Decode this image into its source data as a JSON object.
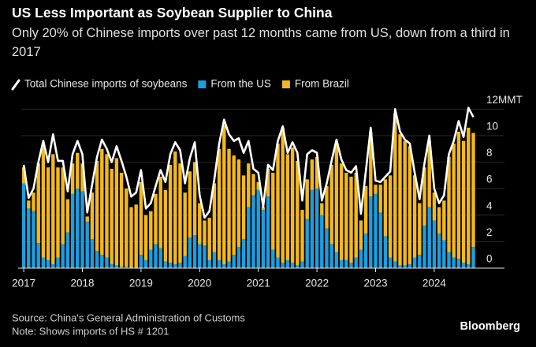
{
  "chart_data": {
    "type": "bar",
    "stacked": true,
    "title": "US Less Important as Soybean Supplier to China",
    "subtitle": "Only 20% of Chinese imports over past 12 months came from US, down from a third in 2017",
    "source": "Source: China's General Administration of Customs",
    "note": "Note: Shows imports of HS # 1201",
    "brand": "Bloomberg",
    "legend": "top-left",
    "grid": true,
    "categories": [
      "2017",
      null,
      null,
      null,
      null,
      null,
      null,
      null,
      null,
      null,
      null,
      null,
      "2018",
      null,
      null,
      null,
      null,
      null,
      null,
      null,
      null,
      null,
      null,
      null,
      "2019",
      null,
      null,
      null,
      null,
      null,
      null,
      null,
      null,
      null,
      null,
      null,
      "2020",
      null,
      null,
      null,
      null,
      null,
      null,
      null,
      null,
      null,
      null,
      null,
      "2021",
      null,
      null,
      null,
      null,
      null,
      null,
      null,
      null,
      null,
      null,
      null,
      "2022",
      null,
      null,
      null,
      null,
      null,
      null,
      null,
      null,
      null,
      null,
      null,
      "2023",
      null,
      null,
      null,
      null,
      null,
      null,
      null,
      null,
      null,
      null,
      null,
      "2024",
      null,
      null,
      null,
      null,
      null,
      null,
      null,
      null
    ],
    "series": [
      {
        "name": "Total Chinese imports of soybeans",
        "type": "line",
        "color": "#ffffff",
        "values": [
          7.8,
          5.3,
          6.0,
          8.0,
          9.6,
          8.0,
          10.1,
          8.1,
          8.1,
          5.8,
          8.6,
          9.6,
          8.6,
          4.2,
          6.3,
          8.4,
          9.7,
          9.0,
          8.0,
          9.2,
          8.1,
          6.9,
          5.4,
          5.7,
          7.4,
          4.5,
          4.9,
          6.2,
          7.4,
          6.5,
          8.6,
          9.5,
          8.9,
          6.4,
          8.3,
          9.5,
          5.5,
          3.8,
          4.3,
          6.7,
          9.4,
          11.2,
          10.1,
          9.6,
          9.8,
          8.7,
          9.6,
          7.5,
          7.2,
          4.6,
          7.8,
          7.4,
          9.6,
          10.7,
          8.7,
          9.5,
          8.7,
          5.1,
          8.6,
          8.9,
          8.7,
          5.1,
          6.4,
          8.1,
          9.7,
          8.2,
          7.4,
          7.2,
          7.7,
          4.1,
          7.3,
          10.6,
          6.6,
          6.5,
          6.9,
          7.3,
          12.0,
          10.3,
          9.7,
          9.4,
          7.2,
          5.2,
          7.9,
          10.0,
          6.0,
          4.9,
          5.5,
          8.6,
          9.6,
          11.1,
          9.9,
          12.1,
          11.4
        ]
      },
      {
        "name": "From the US",
        "type": "bar",
        "color": "#1c9fe0",
        "values": [
          6.4,
          4.5,
          4.3,
          1.9,
          0.8,
          0.6,
          0.3,
          0.8,
          1.8,
          2.7,
          5.6,
          6.0,
          5.8,
          3.5,
          2.2,
          1.3,
          1.0,
          0.8,
          0.3,
          0.2,
          0.1,
          0.1,
          0.0,
          0.0,
          1.0,
          0.6,
          1.4,
          1.8,
          1.5,
          0.5,
          0.4,
          0.3,
          0.4,
          0.9,
          2.3,
          2.5,
          1.8,
          1.7,
          0.6,
          1.2,
          0.6,
          0.3,
          0.5,
          1.0,
          1.6,
          2.2,
          4.6,
          5.5,
          5.9,
          4.4,
          5.4,
          1.4,
          0.8,
          0.4,
          0.6,
          0.4,
          0.2,
          0.5,
          3.7,
          5.9,
          6.0,
          4.0,
          3.0,
          1.8,
          1.2,
          0.6,
          0.6,
          0.4,
          0.8,
          1.4,
          2.6,
          5.4,
          5.6,
          4.2,
          2.4,
          0.8,
          0.5,
          0.2,
          0.2,
          0.3,
          0.8,
          1.0,
          3.2,
          4.6,
          3.6,
          2.6,
          2.1,
          1.2,
          0.8,
          0.7,
          0.4,
          0.3,
          1.6
        ]
      },
      {
        "name": "From Brazil",
        "type": "bar",
        "color": "#f2b81d",
        "values": [
          1.2,
          0.6,
          1.4,
          6.0,
          8.4,
          7.0,
          8.3,
          6.8,
          5.8,
          2.5,
          2.3,
          2.7,
          2.1,
          0.4,
          3.5,
          6.8,
          8.0,
          7.8,
          7.2,
          8.1,
          7.1,
          5.9,
          4.6,
          4.8,
          5.5,
          3.4,
          2.9,
          3.8,
          5.4,
          5.4,
          7.4,
          8.5,
          7.5,
          4.8,
          5.0,
          5.5,
          3.1,
          1.9,
          3.2,
          5.2,
          8.4,
          10.5,
          8.5,
          7.5,
          6.6,
          4.8,
          3.3,
          1.6,
          0.6,
          0.2,
          2.1,
          5.8,
          8.6,
          10.2,
          8.0,
          8.7,
          7.9,
          3.9,
          3.0,
          2.3,
          2.4,
          0.9,
          3.2,
          6.0,
          8.3,
          7.3,
          6.6,
          6.5,
          6.4,
          2.2,
          3.6,
          4.9,
          0.7,
          2.1,
          4.3,
          6.2,
          11.2,
          9.9,
          9.4,
          8.9,
          6.2,
          3.9,
          4.4,
          5.0,
          2.1,
          2.0,
          3.0,
          7.2,
          8.6,
          9.6,
          9.2,
          10.3,
          8.6
        ]
      }
    ],
    "ylim": [
      0,
      12.7
    ],
    "yticks": [
      0,
      2,
      4,
      6,
      8,
      10,
      {
        "value": 12,
        "label": "12MMT"
      }
    ]
  }
}
